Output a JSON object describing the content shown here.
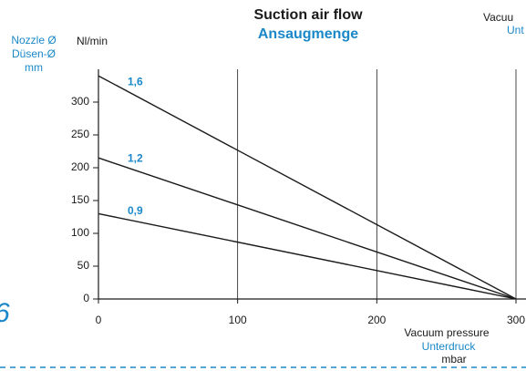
{
  "chart_data": {
    "type": "line",
    "title": "Suction air flow",
    "subtitle": "Ansaugmenge",
    "ylabel": "Nl/min",
    "legend_title": [
      "Nozzle Ø",
      "Düsen-Ø",
      "mm"
    ],
    "xlabel": [
      "Vacuum pressure",
      "Unterdruck",
      "mbar"
    ],
    "annotations": [
      "Vacuu",
      "Unt",
      "6"
    ],
    "x": [
      0,
      300
    ],
    "series": [
      {
        "name": "1,6",
        "color": "#1a1a1a",
        "values": [
          340,
          0
        ]
      },
      {
        "name": "1,2",
        "color": "#1a1a1a",
        "values": [
          215,
          0
        ]
      },
      {
        "name": "0,9",
        "color": "#1a1a1a",
        "values": [
          130,
          0
        ]
      }
    ],
    "xlim": [
      0,
      300
    ],
    "xticks": [
      0,
      100,
      200,
      300
    ],
    "ylim": [
      0,
      350
    ],
    "yticks": [
      0,
      50,
      100,
      150,
      200,
      250,
      300
    ],
    "grid": "x"
  }
}
